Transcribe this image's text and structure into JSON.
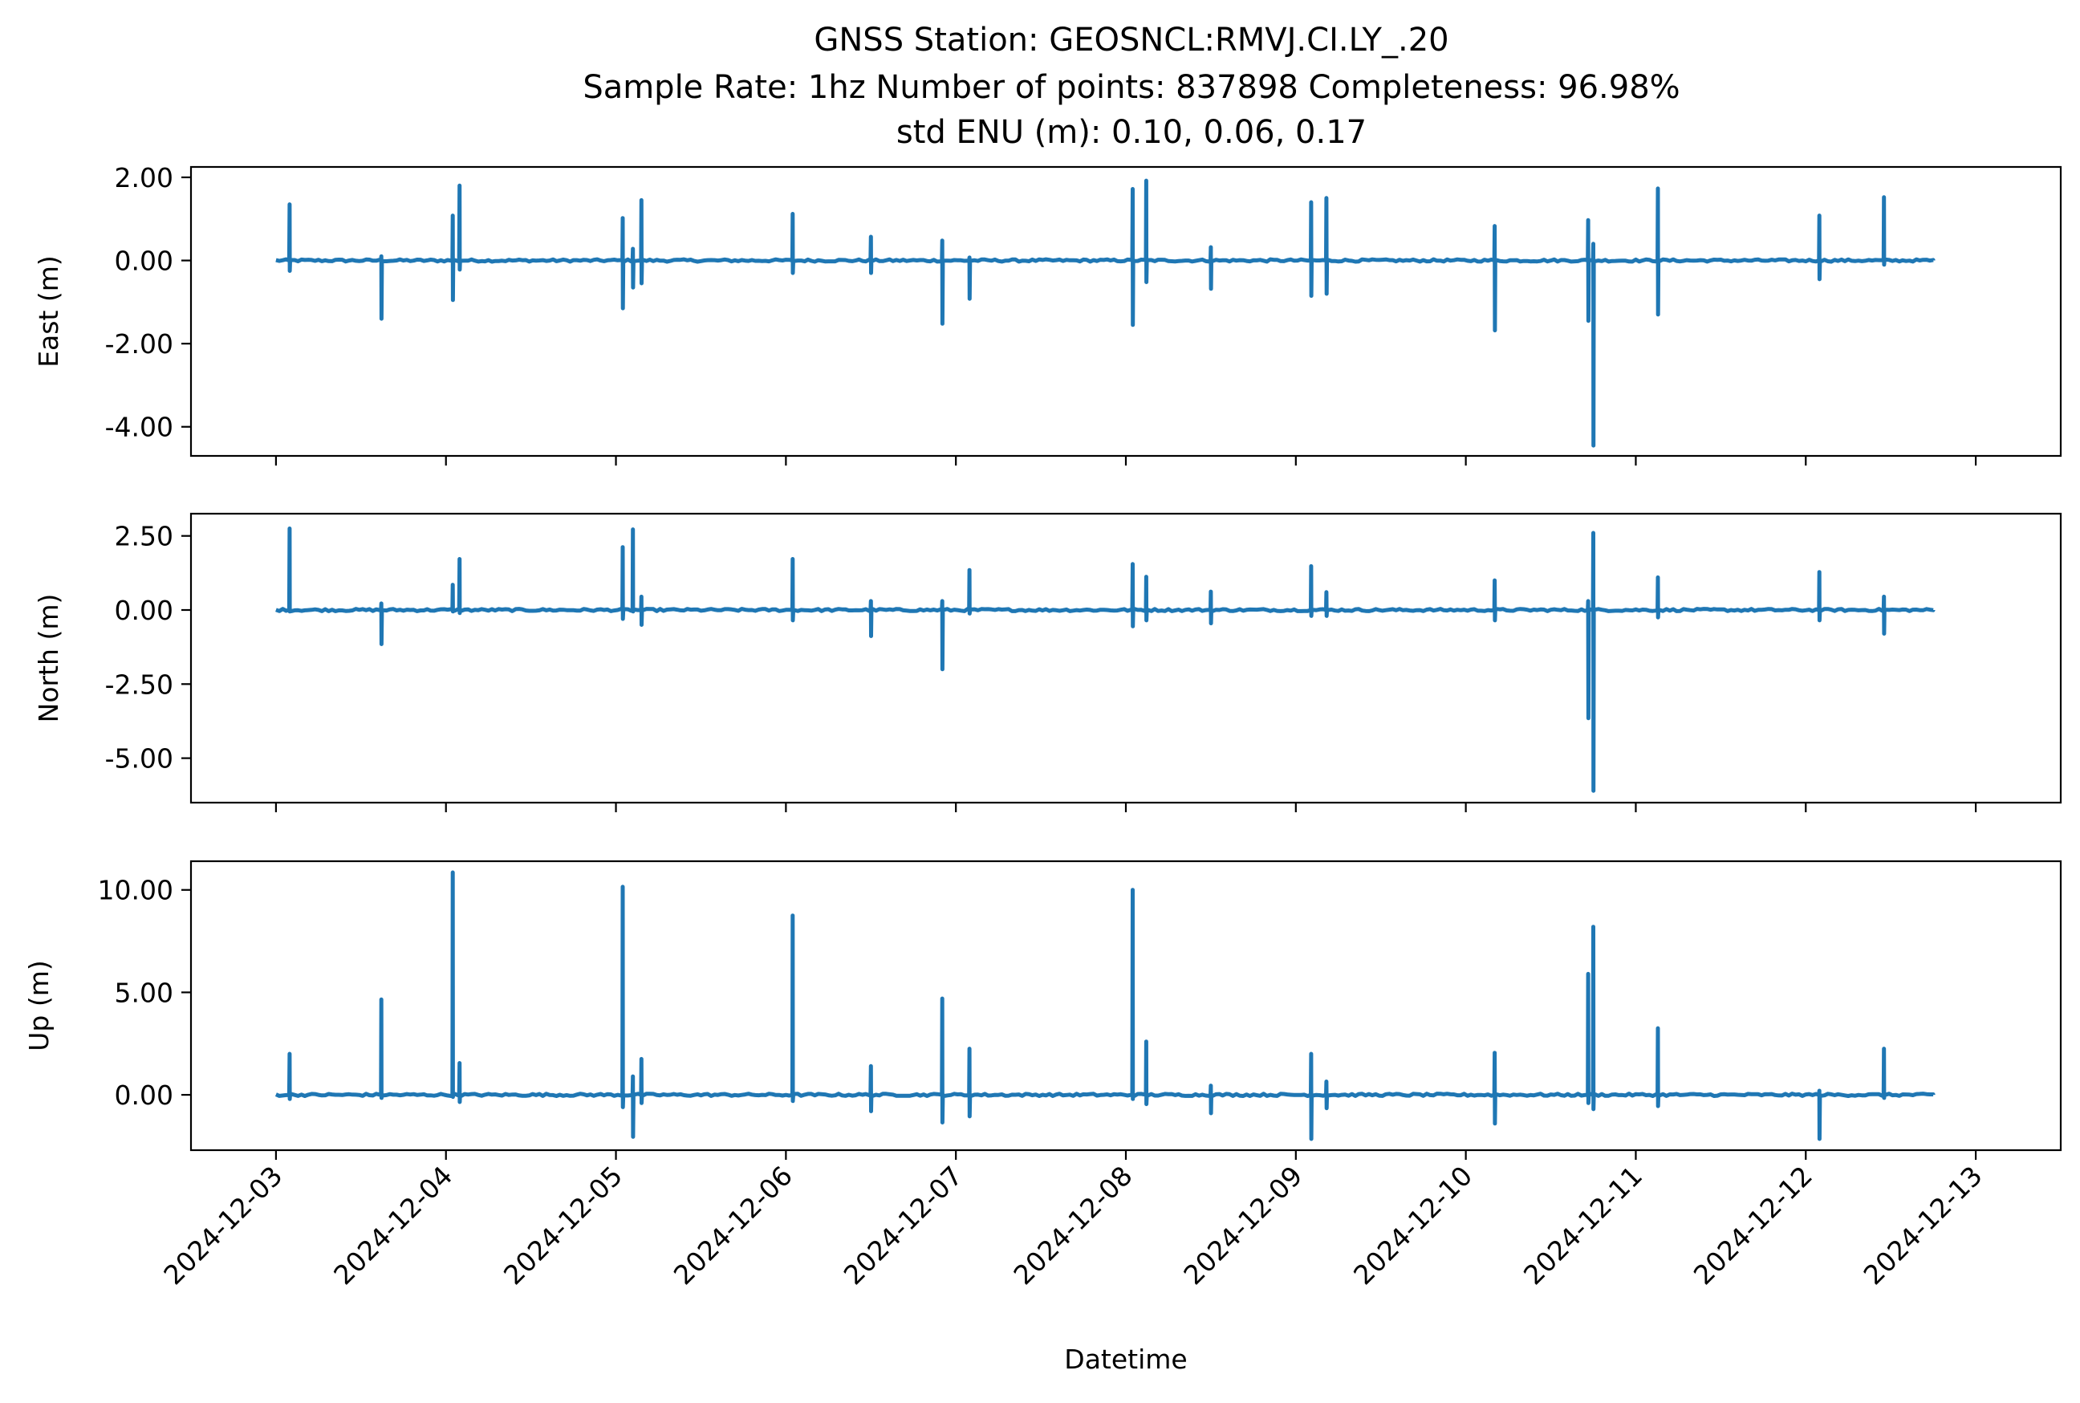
{
  "figure": {
    "title_lines": [
      "GNSS Station: GEOSNCL:RMVJ.CI.LY_.20",
      "Sample Rate: 1hz   Number of points: 837898    Completeness:  96.98%",
      "std ENU (m):  0.10, 0.06, 0.17"
    ],
    "xlabel": "Datetime",
    "x_tick_labels": [
      "2024-12-03",
      "2024-12-04",
      "2024-12-05",
      "2024-12-06",
      "2024-12-07",
      "2024-12-08",
      "2024-12-09",
      "2024-12-10",
      "2024-12-11",
      "2024-12-12",
      "2024-12-13"
    ]
  },
  "colors": {
    "series": "#1f77b4",
    "axes": "#000000",
    "background": "#ffffff"
  },
  "chart_data": [
    {
      "type": "line",
      "ylabel": "East (m)",
      "x_start": "2024-12-03",
      "x_range_days": [
        -0.5,
        10.5
      ],
      "ylim": [
        -4.7,
        2.25
      ],
      "y_ticks": [
        2.0,
        0.0,
        -2.0,
        -4.0
      ],
      "y_tick_labels": [
        "2.00",
        "0.00",
        "-2.00",
        "-4.00"
      ],
      "x_range_end_day": 9.75,
      "spikes": [
        {
          "day": 0.08,
          "high": 1.35,
          "low": -0.25
        },
        {
          "day": 0.62,
          "high": 0.1,
          "low": -1.4
        },
        {
          "day": 1.04,
          "high": 1.08,
          "low": -0.95
        },
        {
          "day": 1.08,
          "high": 1.8,
          "low": -0.22
        },
        {
          "day": 2.04,
          "high": 1.02,
          "low": -1.15
        },
        {
          "day": 2.1,
          "high": 0.28,
          "low": -0.65
        },
        {
          "day": 2.15,
          "high": 1.45,
          "low": -0.55
        },
        {
          "day": 3.04,
          "high": 1.12,
          "low": -0.3
        },
        {
          "day": 3.5,
          "high": 0.57,
          "low": -0.3
        },
        {
          "day": 3.92,
          "high": 0.48,
          "low": -1.52
        },
        {
          "day": 4.08,
          "high": 0.07,
          "low": -0.92
        },
        {
          "day": 5.04,
          "high": 1.72,
          "low": -1.55
        },
        {
          "day": 5.12,
          "high": 1.92,
          "low": -0.52
        },
        {
          "day": 5.5,
          "high": 0.32,
          "low": -0.68
        },
        {
          "day": 6.09,
          "high": 1.4,
          "low": -0.85
        },
        {
          "day": 6.18,
          "high": 1.5,
          "low": -0.8
        },
        {
          "day": 7.17,
          "high": 0.83,
          "low": -1.68
        },
        {
          "day": 7.72,
          "high": 0.97,
          "low": -1.45
        },
        {
          "day": 7.75,
          "high": 0.4,
          "low": -4.45
        },
        {
          "day": 8.13,
          "high": 1.73,
          "low": -1.3
        },
        {
          "day": 9.08,
          "high": 1.08,
          "low": -0.45
        },
        {
          "day": 9.46,
          "high": 1.52,
          "low": -0.1
        }
      ]
    },
    {
      "type": "line",
      "ylabel": "North (m)",
      "x_start": "2024-12-03",
      "x_range_days": [
        -0.5,
        10.5
      ],
      "ylim": [
        -6.5,
        3.25
      ],
      "y_ticks": [
        2.5,
        0.0,
        -2.5,
        -5.0
      ],
      "y_tick_labels": [
        "2.50",
        "0.00",
        "-2.50",
        "-5.00"
      ],
      "x_range_end_day": 9.75,
      "spikes": [
        {
          "day": 0.08,
          "high": 2.75,
          "low": -0.05
        },
        {
          "day": 0.62,
          "high": 0.22,
          "low": -1.15
        },
        {
          "day": 1.04,
          "high": 0.85,
          "low": -0.05
        },
        {
          "day": 1.08,
          "high": 1.72,
          "low": -0.1
        },
        {
          "day": 2.04,
          "high": 2.12,
          "low": -0.3
        },
        {
          "day": 2.1,
          "high": 2.72,
          "low": -0.05
        },
        {
          "day": 2.15,
          "high": 0.45,
          "low": -0.5
        },
        {
          "day": 3.04,
          "high": 1.72,
          "low": -0.35
        },
        {
          "day": 3.5,
          "high": 0.3,
          "low": -0.88
        },
        {
          "day": 3.92,
          "high": 0.3,
          "low": -2.0
        },
        {
          "day": 4.08,
          "high": 1.35,
          "low": -0.12
        },
        {
          "day": 5.04,
          "high": 1.55,
          "low": -0.55
        },
        {
          "day": 5.12,
          "high": 1.12,
          "low": -0.35
        },
        {
          "day": 5.5,
          "high": 0.62,
          "low": -0.45
        },
        {
          "day": 6.09,
          "high": 1.48,
          "low": -0.2
        },
        {
          "day": 6.18,
          "high": 0.6,
          "low": -0.2
        },
        {
          "day": 7.17,
          "high": 1.0,
          "low": -0.35
        },
        {
          "day": 7.72,
          "high": 0.3,
          "low": -3.65
        },
        {
          "day": 7.75,
          "high": 2.6,
          "low": -6.1
        },
        {
          "day": 8.13,
          "high": 1.1,
          "low": -0.25
        },
        {
          "day": 9.08,
          "high": 1.28,
          "low": -0.35
        },
        {
          "day": 9.46,
          "high": 0.45,
          "low": -0.8
        }
      ]
    },
    {
      "type": "line",
      "ylabel": "Up (m)",
      "x_start": "2024-12-03",
      "x_range_days": [
        -0.5,
        10.5
      ],
      "ylim": [
        -2.7,
        11.4
      ],
      "y_ticks": [
        10.0,
        5.0,
        0.0
      ],
      "y_tick_labels": [
        "10.00",
        "5.00",
        "0.00"
      ],
      "x_range_end_day": 9.75,
      "spikes": [
        {
          "day": 0.08,
          "high": 2.0,
          "low": -0.2
        },
        {
          "day": 0.62,
          "high": 4.65,
          "low": -0.15
        },
        {
          "day": 1.04,
          "high": 10.85,
          "low": -0.1
        },
        {
          "day": 1.08,
          "high": 1.55,
          "low": -0.35
        },
        {
          "day": 2.04,
          "high": 10.15,
          "low": -0.6
        },
        {
          "day": 2.1,
          "high": 0.9,
          "low": -2.05
        },
        {
          "day": 2.15,
          "high": 1.75,
          "low": -0.4
        },
        {
          "day": 3.04,
          "high": 8.75,
          "low": -0.3
        },
        {
          "day": 3.5,
          "high": 1.4,
          "low": -0.8
        },
        {
          "day": 3.92,
          "high": 4.7,
          "low": -1.35
        },
        {
          "day": 4.08,
          "high": 2.25,
          "low": -1.05
        },
        {
          "day": 5.04,
          "high": 10.0,
          "low": -0.2
        },
        {
          "day": 5.12,
          "high": 2.6,
          "low": -0.45
        },
        {
          "day": 5.5,
          "high": 0.45,
          "low": -0.9
        },
        {
          "day": 6.09,
          "high": 2.0,
          "low": -2.15
        },
        {
          "day": 6.18,
          "high": 0.65,
          "low": -0.65
        },
        {
          "day": 7.17,
          "high": 2.05,
          "low": -1.4
        },
        {
          "day": 7.72,
          "high": 5.9,
          "low": -0.4
        },
        {
          "day": 7.75,
          "high": 8.2,
          "low": -0.7
        },
        {
          "day": 8.13,
          "high": 3.25,
          "low": -0.55
        },
        {
          "day": 9.08,
          "high": 0.2,
          "low": -2.15
        },
        {
          "day": 9.46,
          "high": 2.25,
          "low": -0.15
        }
      ]
    }
  ]
}
